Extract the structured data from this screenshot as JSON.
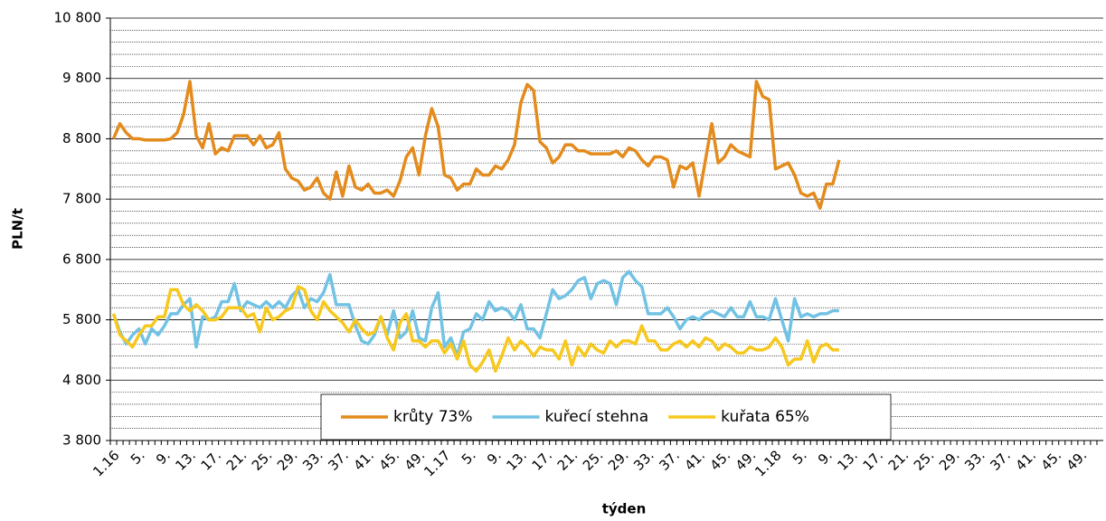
{
  "chart_data": {
    "type": "line",
    "y_label": "PLN/t",
    "x_label": "týden",
    "ylim": [
      3800,
      10800
    ],
    "yticks": [
      {
        "value": 3800,
        "label": "3 800"
      },
      {
        "value": 4800,
        "label": "4 800"
      },
      {
        "value": 5800,
        "label": "5 800"
      },
      {
        "value": 6800,
        "label": "6 800"
      },
      {
        "value": 7800,
        "label": "7 800"
      },
      {
        "value": 8800,
        "label": "8 800"
      },
      {
        "value": 9800,
        "label": "9 800"
      },
      {
        "value": 10800,
        "label": "10 800"
      }
    ],
    "yminorticks": [
      4000,
      4200,
      4400,
      4600,
      5000,
      5200,
      5400,
      5600,
      6000,
      6200,
      6400,
      6600,
      7000,
      7200,
      7400,
      7600,
      8000,
      8200,
      8400,
      8600,
      9000,
      9200,
      9400,
      9600,
      10000,
      10200,
      10400,
      10600
    ],
    "grid": true,
    "legend": "bottom",
    "categories": [
      "1.16",
      null,
      null,
      null,
      "5.",
      null,
      null,
      null,
      "9.",
      null,
      null,
      null,
      "13.",
      null,
      null,
      null,
      "17.",
      null,
      null,
      null,
      "21.",
      null,
      null,
      null,
      "25.",
      null,
      null,
      null,
      "29.",
      null,
      null,
      null,
      "33.",
      null,
      null,
      null,
      "37.",
      null,
      null,
      null,
      "41.",
      null,
      null,
      null,
      "45.",
      null,
      null,
      null,
      "49.",
      null,
      null,
      null,
      "1.17",
      null,
      null,
      null,
      "5.",
      null,
      null,
      null,
      "9.",
      null,
      null,
      null,
      "13.",
      null,
      null,
      null,
      "17.",
      null,
      null,
      null,
      "21.",
      null,
      null,
      null,
      "25.",
      null,
      null,
      null,
      "29.",
      null,
      null,
      null,
      "33.",
      null,
      null,
      null,
      "37.",
      null,
      null,
      null,
      "41.",
      null,
      null,
      null,
      "45.",
      null,
      null,
      null,
      "49.",
      null,
      null,
      null,
      "1.18",
      null,
      null,
      null,
      "5.",
      null,
      null,
      null,
      "9.",
      null,
      null,
      null,
      "13.",
      null,
      null,
      null,
      "17.",
      null,
      null,
      null,
      "21.",
      null,
      null,
      null,
      "25.",
      null,
      null,
      null,
      "29.",
      null,
      null,
      null,
      "33.",
      null,
      null,
      null,
      "37.",
      null,
      null,
      null,
      "41.",
      null,
      null,
      null,
      "45.",
      null,
      null,
      null,
      "49.",
      null,
      null,
      null
    ],
    "series": [
      {
        "name": "krůty 73%",
        "color": "#e38b1c",
        "values": [
          8800,
          9050,
          8900,
          8800,
          8800,
          8780,
          8780,
          8780,
          8780,
          8800,
          8900,
          9200,
          9750,
          8850,
          8650,
          9050,
          8550,
          8650,
          8600,
          8850,
          8850,
          8850,
          8700,
          8850,
          8650,
          8700,
          8900,
          8300,
          8150,
          8100,
          7950,
          8000,
          8150,
          7900,
          7800,
          8250,
          7850,
          8350,
          8000,
          7950,
          8050,
          7900,
          7900,
          7950,
          7850,
          8100,
          8500,
          8650,
          8200,
          8850,
          9300,
          9000,
          8200,
          8150,
          7950,
          8050,
          8050,
          8300,
          8200,
          8200,
          8350,
          8300,
          8450,
          8700,
          9400,
          9700,
          9600,
          8750,
          8650,
          8400,
          8500,
          8700,
          8700,
          8600,
          8600,
          8550,
          8550,
          8550,
          8550,
          8600,
          8500,
          8650,
          8600,
          8450,
          8350,
          8500,
          8500,
          8450,
          8000,
          8350,
          8300,
          8400,
          7850,
          8450,
          9050,
          8400,
          8500,
          8700,
          8600,
          8550,
          8500,
          9750,
          9500,
          9450,
          8300,
          8350,
          8400,
          8200,
          7900,
          7850,
          7900,
          7650,
          8050,
          8050,
          8450,
          null,
          null,
          null,
          null,
          null,
          null,
          null,
          null,
          null,
          null,
          null,
          null,
          null,
          null,
          null,
          null,
          null,
          null,
          null,
          null,
          null,
          null,
          null,
          null,
          null,
          null,
          null,
          null,
          null,
          null,
          null,
          null,
          null,
          null,
          null,
          null,
          null,
          null,
          null,
          null,
          null
        ]
      },
      {
        "name": "kuřecí stehna",
        "color": "#72c2e4",
        "values": [
          5900,
          5600,
          5400,
          5550,
          5650,
          5400,
          5650,
          5550,
          5700,
          5900,
          5900,
          6050,
          6150,
          5350,
          5850,
          5800,
          5850,
          6100,
          6100,
          6400,
          5950,
          6100,
          6050,
          6000,
          6100,
          6000,
          6100,
          6000,
          6200,
          6300,
          6000,
          6150,
          6100,
          6250,
          6550,
          6050,
          6050,
          6050,
          5700,
          5450,
          5400,
          5550,
          5850,
          5550,
          5950,
          5500,
          5600,
          5950,
          5500,
          5450,
          6000,
          6250,
          5350,
          5500,
          5200,
          5600,
          5650,
          5900,
          5800,
          6100,
          5950,
          6000,
          5950,
          5800,
          6050,
          5650,
          5650,
          5500,
          5900,
          6300,
          6150,
          6200,
          6300,
          6450,
          6500,
          6150,
          6400,
          6450,
          6400,
          6050,
          6500,
          6600,
          6450,
          6350,
          5900,
          5900,
          5900,
          6000,
          5850,
          5650,
          5800,
          5850,
          5800,
          5900,
          5950,
          5900,
          5850,
          6000,
          5850,
          5850,
          6100,
          5850,
          5850,
          5800,
          6150,
          5800,
          5450,
          6150,
          5850,
          5900,
          5850,
          5900,
          5900,
          5950,
          5950,
          null,
          null,
          null,
          null,
          null,
          null,
          null,
          null,
          null,
          null,
          null,
          null,
          null,
          null,
          null,
          null,
          null,
          null,
          null,
          null,
          null,
          null,
          null,
          null,
          null,
          null,
          null,
          null,
          null,
          null,
          null,
          null,
          null,
          null,
          null,
          null,
          null,
          null,
          null,
          null,
          null
        ]
      },
      {
        "name": "kuřata 65%",
        "color": "#f7c81e",
        "values": [
          5900,
          5550,
          5450,
          5350,
          5550,
          5700,
          5700,
          5850,
          5850,
          6300,
          6300,
          6050,
          5950,
          6050,
          5950,
          5800,
          5800,
          5850,
          6000,
          6000,
          6000,
          5850,
          5900,
          5600,
          6000,
          5800,
          5850,
          5950,
          6000,
          6350,
          6300,
          5950,
          5800,
          6100,
          5950,
          5850,
          5750,
          5600,
          5800,
          5650,
          5550,
          5600,
          5850,
          5500,
          5300,
          5750,
          5900,
          5450,
          5450,
          5350,
          5450,
          5450,
          5250,
          5400,
          5150,
          5450,
          5050,
          4950,
          5100,
          5300,
          4950,
          5200,
          5500,
          5300,
          5450,
          5350,
          5200,
          5350,
          5300,
          5300,
          5150,
          5450,
          5050,
          5350,
          5200,
          5400,
          5300,
          5250,
          5450,
          5350,
          5450,
          5450,
          5400,
          5700,
          5450,
          5450,
          5300,
          5300,
          5400,
          5450,
          5350,
          5450,
          5350,
          5500,
          5450,
          5300,
          5400,
          5350,
          5250,
          5250,
          5350,
          5300,
          5300,
          5350,
          5500,
          5350,
          5050,
          5150,
          5150,
          5450,
          5100,
          5350,
          5400,
          5300,
          5300,
          null,
          null,
          null,
          null,
          null,
          null,
          null,
          null,
          null,
          null,
          null,
          null,
          null,
          null,
          null,
          null,
          null,
          null,
          null,
          null,
          null,
          null,
          null,
          null,
          null,
          null,
          null,
          null,
          null,
          null,
          null,
          null,
          null,
          null,
          null,
          null,
          null,
          null,
          null,
          null,
          null
        ]
      }
    ]
  }
}
